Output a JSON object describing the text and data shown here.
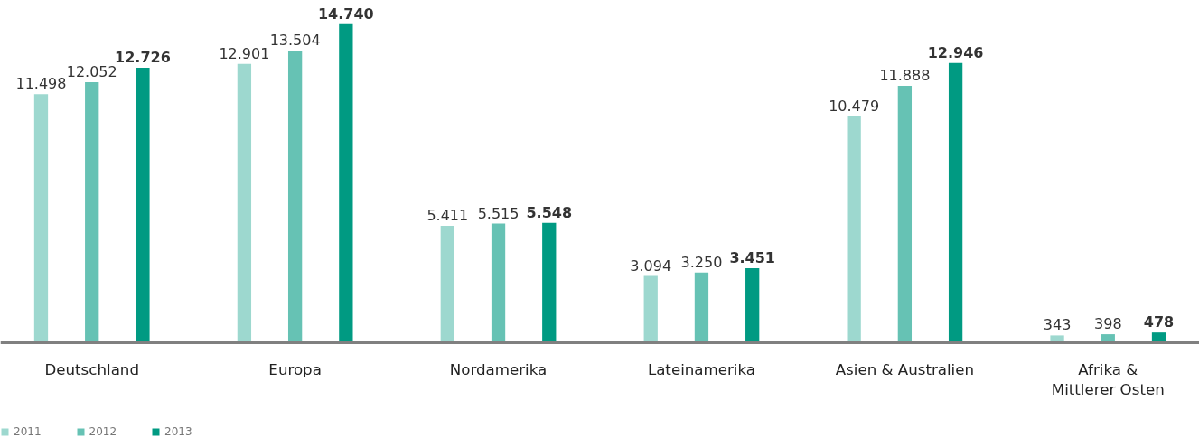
{
  "chart_data": {
    "type": "bar",
    "categories": [
      "Deutschland",
      "Europa",
      "Nordamerika",
      "Lateinamerika",
      "Asien & Australien",
      "Afrika &\nMittlerer Osten"
    ],
    "series": [
      {
        "name": "2011",
        "color": "#9dd8cf",
        "values": [
          11498,
          12901,
          5411,
          3094,
          10479,
          343
        ],
        "value_labels": [
          "11.498",
          "12.901",
          "5.411",
          "3.094",
          "10.479",
          "343"
        ]
      },
      {
        "name": "2012",
        "color": "#66c2b4",
        "values": [
          12052,
          13504,
          5515,
          3250,
          11888,
          398
        ],
        "value_labels": [
          "12.052",
          "13.504",
          "5.515",
          "3.250",
          "11.888",
          "398"
        ]
      },
      {
        "name": "2013",
        "color": "#009a82",
        "values": [
          12726,
          14740,
          5548,
          3451,
          12946,
          478
        ],
        "value_labels": [
          "12.726",
          "14.740",
          "5.548",
          "3.451",
          "12.946",
          "478"
        ]
      }
    ],
    "legend": "bottom left",
    "grid": false
  }
}
